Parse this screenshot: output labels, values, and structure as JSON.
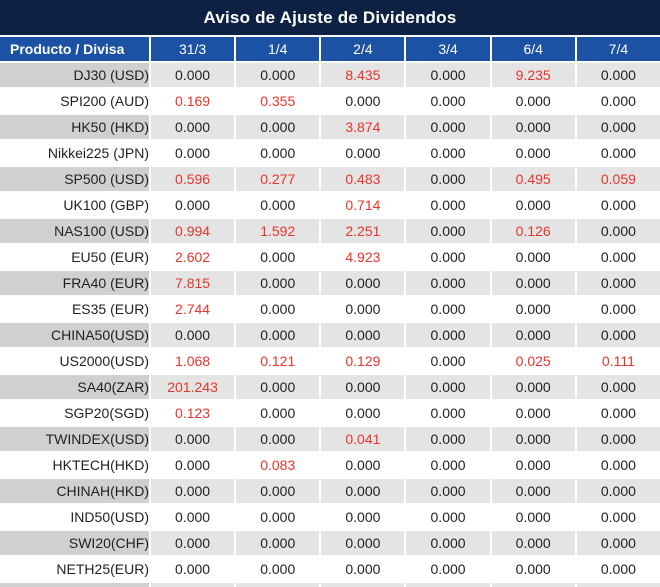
{
  "title": "Aviso de Ajuste de Dividendos",
  "colors": {
    "title_bg": "#0e2142",
    "header_bg": "#1b52a4",
    "alt_row_bg": "#e4e4e4",
    "alt_row_product_bg": "#d0d0d0",
    "negative_value_red": "#e7352b",
    "text": "#1f1f1f"
  },
  "table": {
    "product_header": "Producto / Divisa",
    "dates": [
      "31/3",
      "1/4",
      "2/4",
      "3/4",
      "6/4",
      "7/4"
    ],
    "rows": [
      {
        "product": "DJ30 (USD)",
        "values": [
          "0.000",
          "0.000",
          "8.435",
          "0.000",
          "9.235",
          "0.000"
        ],
        "red": [
          false,
          false,
          true,
          false,
          true,
          false
        ]
      },
      {
        "product": "SPI200 (AUD)",
        "values": [
          "0.169",
          "0.355",
          "0.000",
          "0.000",
          "0.000",
          "0.000"
        ],
        "red": [
          true,
          true,
          false,
          false,
          false,
          false
        ]
      },
      {
        "product": "HK50 (HKD)",
        "values": [
          "0.000",
          "0.000",
          "3.874",
          "0.000",
          "0.000",
          "0.000"
        ],
        "red": [
          false,
          false,
          true,
          false,
          false,
          false
        ]
      },
      {
        "product": "Nikkei225 (JPN)",
        "values": [
          "0.000",
          "0.000",
          "0.000",
          "0.000",
          "0.000",
          "0.000"
        ],
        "red": [
          false,
          false,
          false,
          false,
          false,
          false
        ]
      },
      {
        "product": "SP500 (USD)",
        "values": [
          "0.596",
          "0.277",
          "0.483",
          "0.000",
          "0.495",
          "0.059"
        ],
        "red": [
          true,
          true,
          true,
          false,
          true,
          true
        ]
      },
      {
        "product": "UK100 (GBP)",
        "values": [
          "0.000",
          "0.000",
          "0.714",
          "0.000",
          "0.000",
          "0.000"
        ],
        "red": [
          false,
          false,
          true,
          false,
          false,
          false
        ]
      },
      {
        "product": "NAS100 (USD)",
        "values": [
          "0.994",
          "1.592",
          "2.251",
          "0.000",
          "0.126",
          "0.000"
        ],
        "red": [
          true,
          true,
          true,
          false,
          true,
          false
        ]
      },
      {
        "product": "EU50 (EUR)",
        "values": [
          "2.602",
          "0.000",
          "4.923",
          "0.000",
          "0.000",
          "0.000"
        ],
        "red": [
          true,
          false,
          true,
          false,
          false,
          false
        ]
      },
      {
        "product": "FRA40 (EUR)",
        "values": [
          "7.815",
          "0.000",
          "0.000",
          "0.000",
          "0.000",
          "0.000"
        ],
        "red": [
          true,
          false,
          false,
          false,
          false,
          false
        ]
      },
      {
        "product": "ES35 (EUR)",
        "values": [
          "2.744",
          "0.000",
          "0.000",
          "0.000",
          "0.000",
          "0.000"
        ],
        "red": [
          true,
          false,
          false,
          false,
          false,
          false
        ]
      },
      {
        "product": "CHINA50(USD)",
        "values": [
          "0.000",
          "0.000",
          "0.000",
          "0.000",
          "0.000",
          "0.000"
        ],
        "red": [
          false,
          false,
          false,
          false,
          false,
          false
        ]
      },
      {
        "product": "US2000(USD)",
        "values": [
          "1.068",
          "0.121",
          "0.129",
          "0.000",
          "0.025",
          "0.111"
        ],
        "red": [
          true,
          true,
          true,
          false,
          true,
          true
        ]
      },
      {
        "product": "SA40(ZAR)",
        "values": [
          "201.243",
          "0.000",
          "0.000",
          "0.000",
          "0.000",
          "0.000"
        ],
        "red": [
          true,
          false,
          false,
          false,
          false,
          false
        ]
      },
      {
        "product": "SGP20(SGD)",
        "values": [
          "0.123",
          "0.000",
          "0.000",
          "0.000",
          "0.000",
          "0.000"
        ],
        "red": [
          true,
          false,
          false,
          false,
          false,
          false
        ]
      },
      {
        "product": "TWINDEX(USD)",
        "values": [
          "0.000",
          "0.000",
          "0.041",
          "0.000",
          "0.000",
          "0.000"
        ],
        "red": [
          false,
          false,
          true,
          false,
          false,
          false
        ]
      },
      {
        "product": "HKTECH(HKD)",
        "values": [
          "0.000",
          "0.083",
          "0.000",
          "0.000",
          "0.000",
          "0.000"
        ],
        "red": [
          false,
          true,
          false,
          false,
          false,
          false
        ]
      },
      {
        "product": "CHINAH(HKD)",
        "values": [
          "0.000",
          "0.000",
          "0.000",
          "0.000",
          "0.000",
          "0.000"
        ],
        "red": [
          false,
          false,
          false,
          false,
          false,
          false
        ]
      },
      {
        "product": "IND50(USD)",
        "values": [
          "0.000",
          "0.000",
          "0.000",
          "0.000",
          "0.000",
          "0.000"
        ],
        "red": [
          false,
          false,
          false,
          false,
          false,
          false
        ]
      },
      {
        "product": "SWI20(CHF)",
        "values": [
          "0.000",
          "0.000",
          "0.000",
          "0.000",
          "0.000",
          "0.000"
        ],
        "red": [
          false,
          false,
          false,
          false,
          false,
          false
        ]
      },
      {
        "product": "NETH25(EUR)",
        "values": [
          "0.000",
          "0.000",
          "0.000",
          "0.000",
          "0.000",
          "0.000"
        ],
        "red": [
          false,
          false,
          false,
          false,
          false,
          false
        ]
      }
    ]
  }
}
